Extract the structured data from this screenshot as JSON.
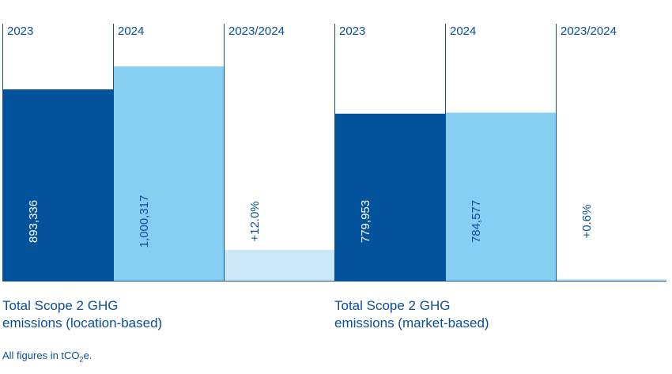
{
  "chart_data": [
    {
      "type": "bar",
      "title": "Total Scope 2 GHG emissions (location-based)",
      "title_lines": [
        "Total Scope 2 GHG",
        "emissions (location-based)"
      ],
      "categories": [
        "2023",
        "2024",
        "2023/2024"
      ],
      "values": [
        893336,
        1000317,
        12.0
      ],
      "labels": [
        "893,336",
        "1,000,317",
        "+12.0%"
      ],
      "ylim": [
        0,
        1200000
      ],
      "change_ylim": [
        0,
        100
      ]
    },
    {
      "type": "bar",
      "title": "Total Scope 2 GHG emissions (market-based)",
      "title_lines": [
        "Total Scope 2 GHG",
        "emissions (market-based)"
      ],
      "categories": [
        "2023",
        "2024",
        "2023/2024"
      ],
      "values": [
        779953,
        784577,
        0.6
      ],
      "labels": [
        "779,953",
        "784,577",
        "+0.6%"
      ],
      "ylim": [
        0,
        1200000
      ],
      "change_ylim": [
        0,
        100
      ]
    }
  ],
  "colors": {
    "bar_2023": "#02529c",
    "bar_2024": "#87cef3",
    "bar_change": "#cde8f8",
    "text": "#0a4f99",
    "divider": "#0a4f99"
  },
  "footnote": {
    "prefix": "All figures in tCO",
    "subscript": "2",
    "suffix": "e."
  }
}
